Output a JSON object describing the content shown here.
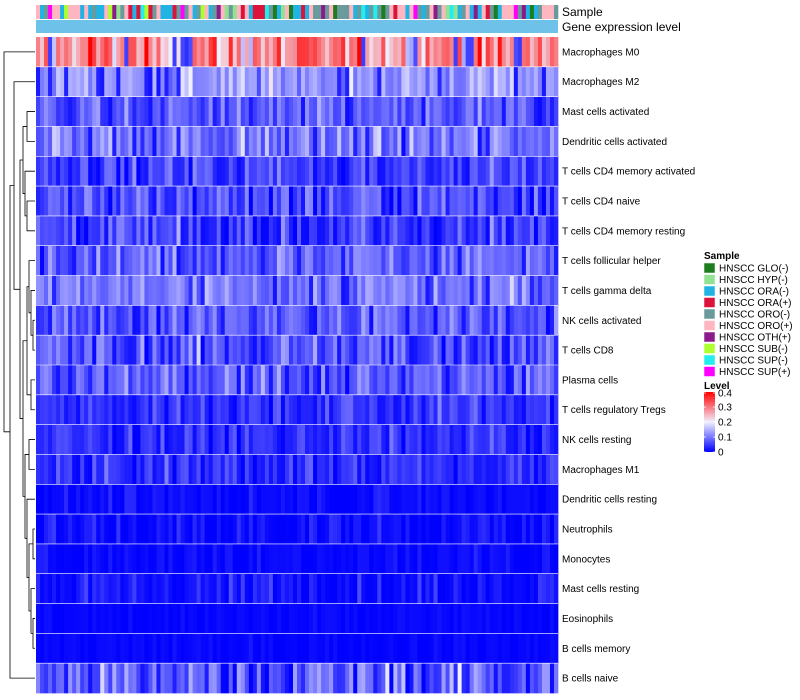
{
  "chart_data": {
    "type": "heatmap",
    "annotation_labels": [
      "Sample",
      "Gene expression level"
    ],
    "rows": [
      {
        "label": "Macrophages M0",
        "mean": 0.28,
        "sd": 0.09
      },
      {
        "label": "Macrophages M2",
        "mean": 0.13,
        "sd": 0.05
      },
      {
        "label": "Mast cells activated",
        "mean": 0.07,
        "sd": 0.05
      },
      {
        "label": "Dendritic cells activated",
        "mean": 0.1,
        "sd": 0.06
      },
      {
        "label": "T cells CD4 memory activated",
        "mean": 0.06,
        "sd": 0.05
      },
      {
        "label": "T cells CD4 naive",
        "mean": 0.07,
        "sd": 0.06
      },
      {
        "label": "T cells CD4 memory resting",
        "mean": 0.05,
        "sd": 0.06
      },
      {
        "label": "T cells follicular helper",
        "mean": 0.09,
        "sd": 0.05
      },
      {
        "label": "T cells gamma delta",
        "mean": 0.1,
        "sd": 0.05
      },
      {
        "label": "NK cells activated",
        "mean": 0.08,
        "sd": 0.05
      },
      {
        "label": "T cells CD8",
        "mean": 0.07,
        "sd": 0.06
      },
      {
        "label": "Plasma cells",
        "mean": 0.08,
        "sd": 0.05
      },
      {
        "label": "T cells regulatory  Tregs",
        "mean": 0.05,
        "sd": 0.04
      },
      {
        "label": "NK cells resting",
        "mean": 0.04,
        "sd": 0.04
      },
      {
        "label": "Macrophages M1",
        "mean": 0.04,
        "sd": 0.04
      },
      {
        "label": "Dendritic cells resting",
        "mean": 0.01,
        "sd": 0.02
      },
      {
        "label": "Neutrophils",
        "mean": 0.01,
        "sd": 0.03
      },
      {
        "label": "Monocytes",
        "mean": 0.01,
        "sd": 0.02
      },
      {
        "label": "Mast cells resting",
        "mean": 0.02,
        "sd": 0.03
      },
      {
        "label": "Eosinophils",
        "mean": 0.005,
        "sd": 0.01
      },
      {
        "label": "B cells memory",
        "mean": 0.005,
        "sd": 0.01
      },
      {
        "label": "B cells naive",
        "mean": 0.08,
        "sd": 0.08
      }
    ],
    "n_samples": 130,
    "sample_legend": {
      "title": "Sample",
      "entries": [
        {
          "name": "HNSCC GLO(-)",
          "color": "#1e7d1e"
        },
        {
          "name": "HNSCC HYP(-)",
          "color": "#93e193"
        },
        {
          "name": "HNSCC ORA(-)",
          "color": "#20b3e3"
        },
        {
          "name": "HNSCC ORA(+)",
          "color": "#dc143c"
        },
        {
          "name": "HNSCC ORO(-)",
          "color": "#6b9a9d"
        },
        {
          "name": "HNSCC ORO(+)",
          "color": "#ffb6c1"
        },
        {
          "name": "HNSCC OTH(+)",
          "color": "#8b1a8b"
        },
        {
          "name": "HNSCC SUB(-)",
          "color": "#adff2f"
        },
        {
          "name": "HNSCC SUP(-)",
          "color": "#22eeee"
        },
        {
          "name": "HNSCC SUP(+)",
          "color": "#ff00ff"
        }
      ]
    },
    "level_legend": {
      "title": "Level",
      "ticks": [
        0.4,
        0.3,
        0.2,
        0.1,
        0
      ],
      "range": [
        0,
        0.4
      ],
      "low_color": "#0000ff",
      "mid_color": "#f0f0ff",
      "high_color": "#ff0000"
    },
    "gene_expression_color": "#6ec1e8"
  }
}
